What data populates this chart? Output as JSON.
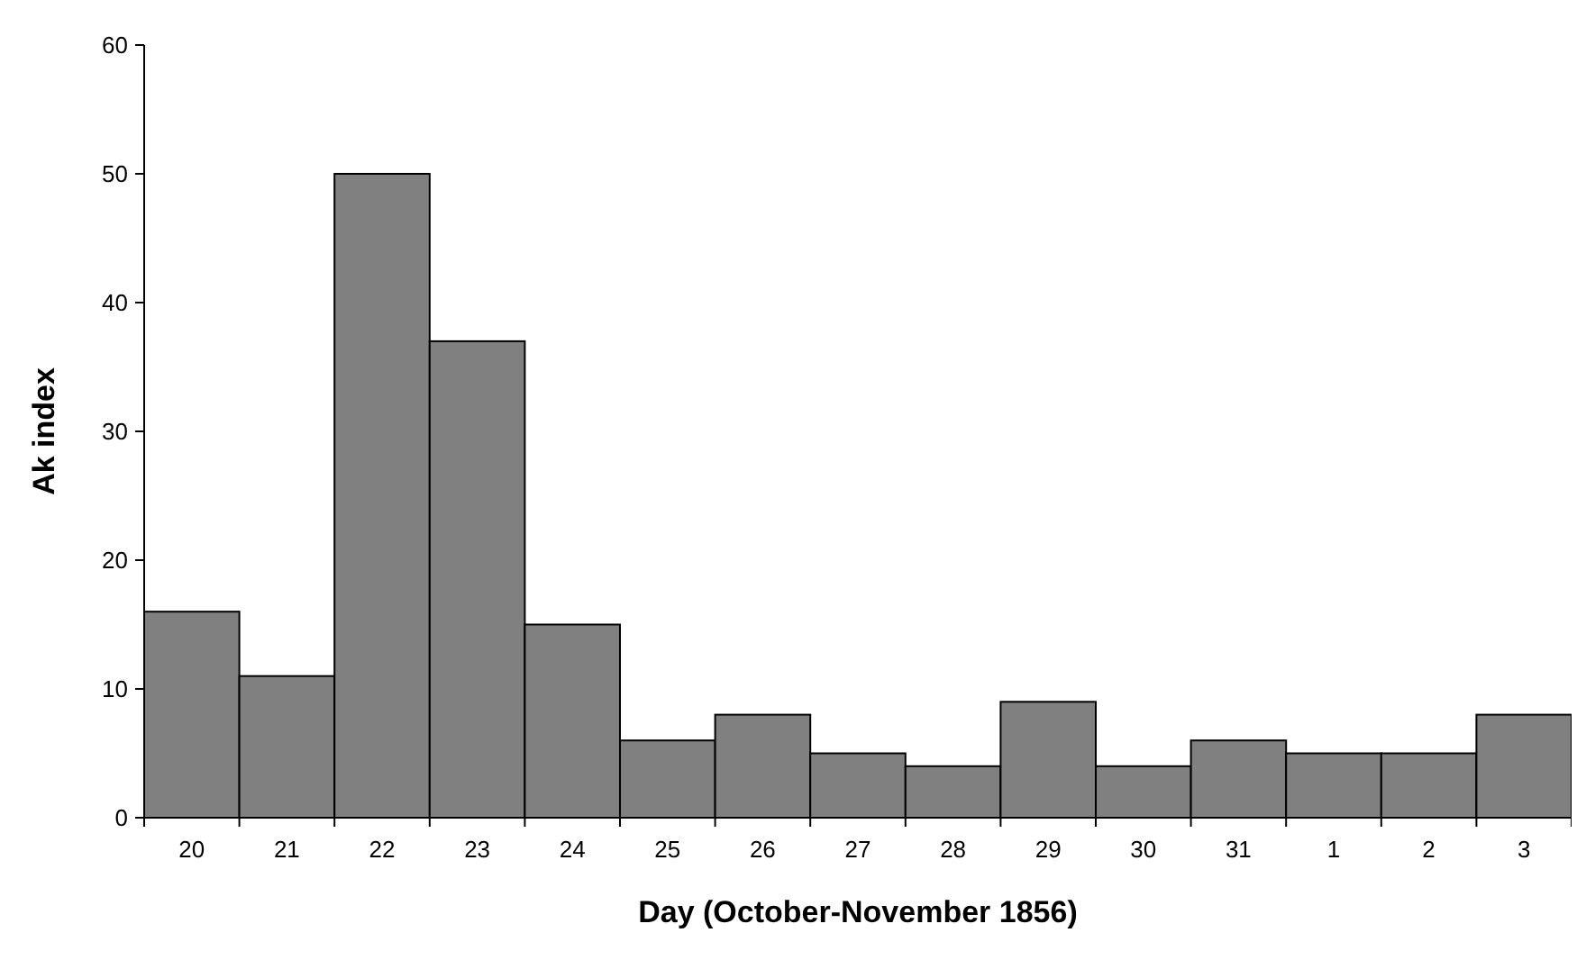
{
  "chart_data": {
    "type": "bar",
    "xlabel": "Day (October-November 1856)",
    "ylabel": "Ak index",
    "categories": [
      "20",
      "21",
      "22",
      "23",
      "24",
      "25",
      "26",
      "27",
      "28",
      "29",
      "30",
      "31",
      "1",
      "2",
      "3"
    ],
    "values": [
      16,
      11,
      50,
      37,
      15,
      6,
      8,
      5,
      4,
      9,
      4,
      6,
      5,
      5,
      8
    ],
    "color": "#808080",
    "ylim": [
      0,
      60
    ],
    "yticks": [
      0,
      10,
      20,
      30,
      40,
      50,
      60
    ],
    "grid": false
  }
}
